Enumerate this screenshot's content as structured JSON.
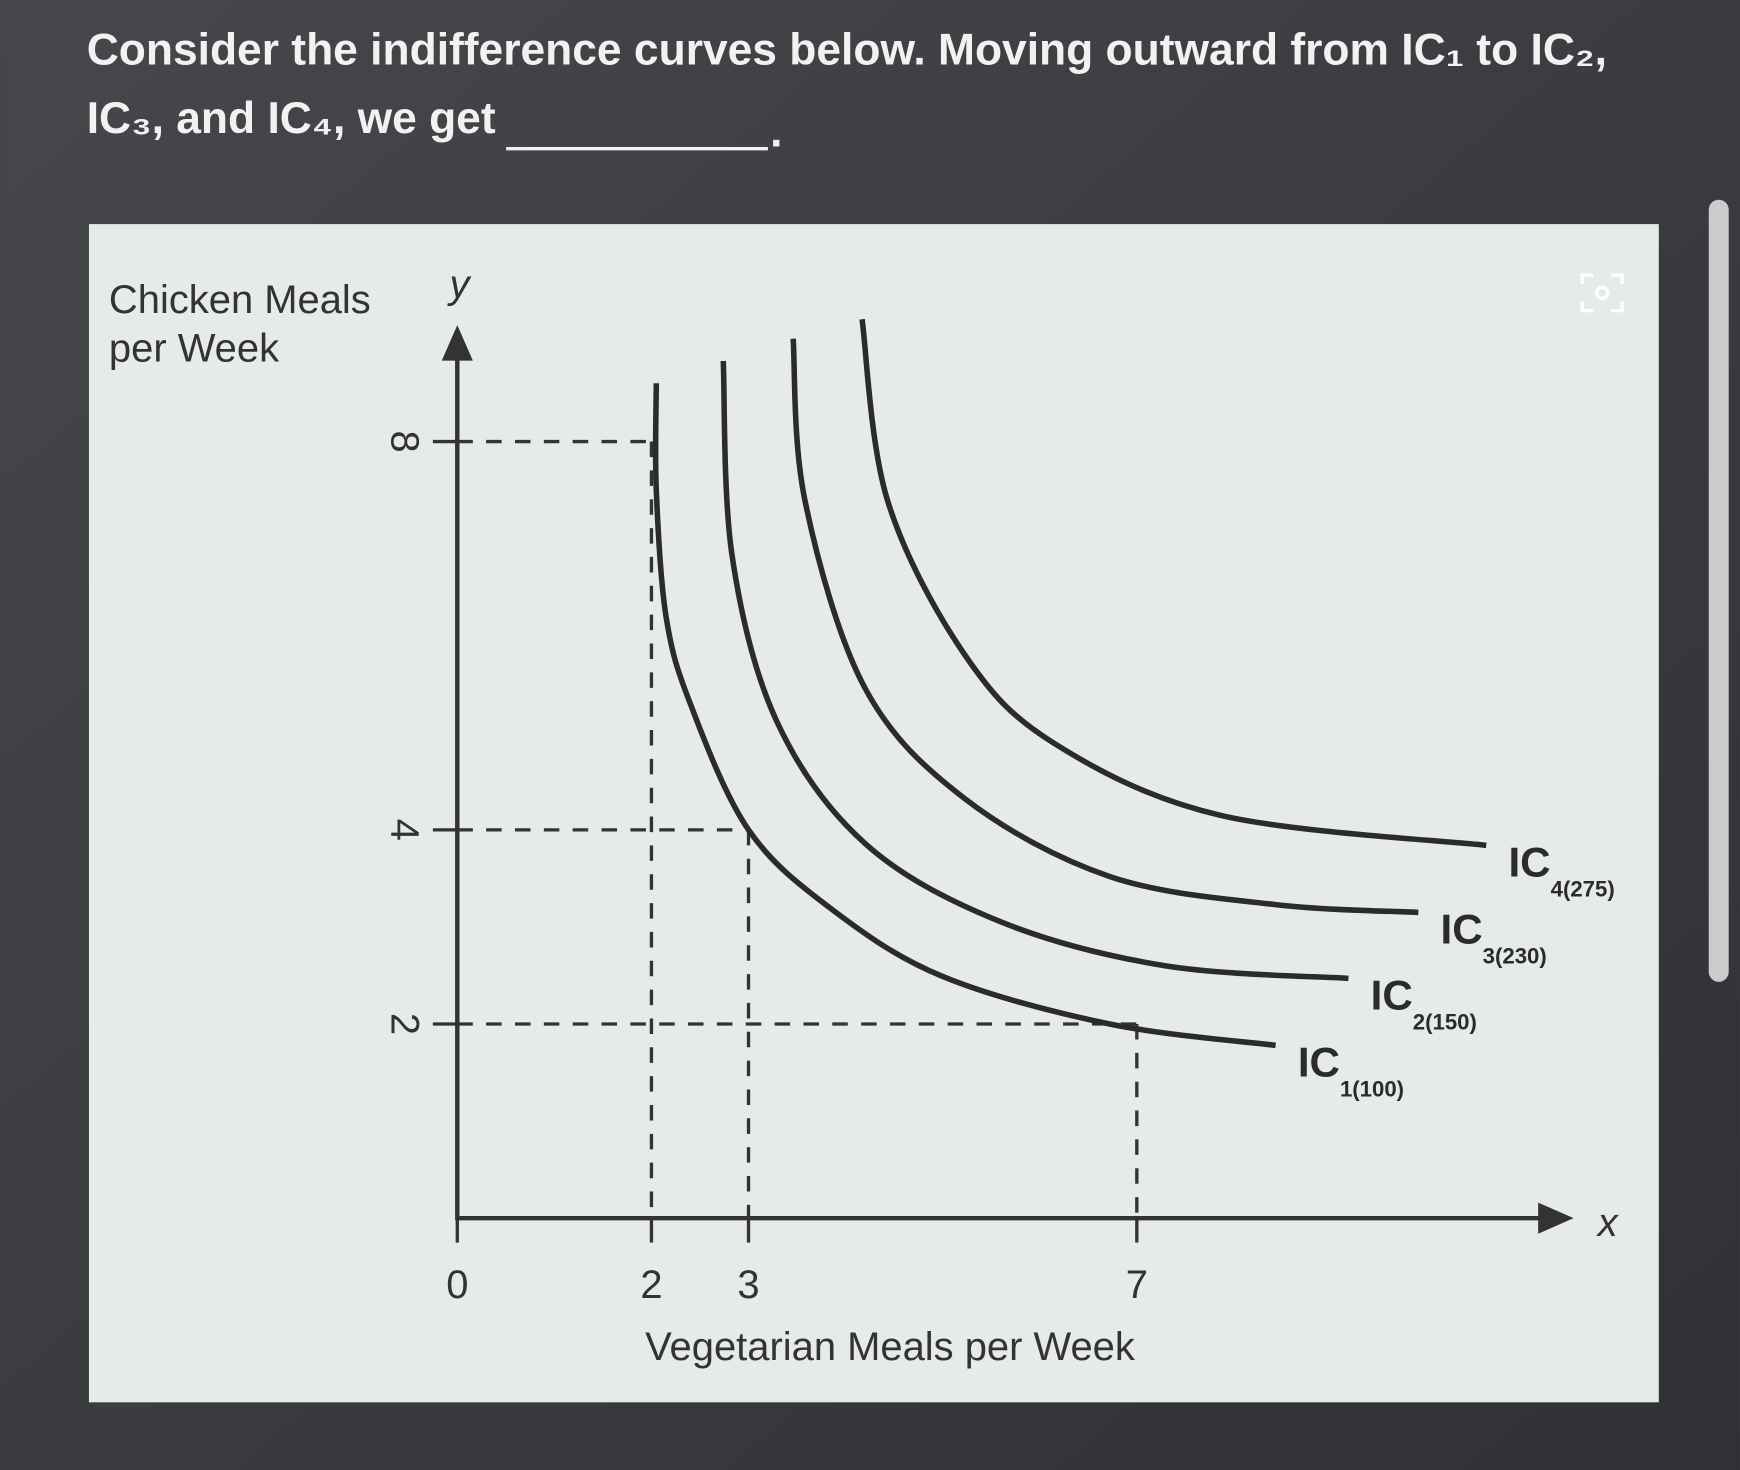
{
  "question_lines": [
    "Consider the indifference curves below. Moving outward from IC₁ to IC₂,",
    "IC₃, and IC₄, we get"
  ],
  "question_end": ".",
  "chart_data": {
    "type": "line",
    "ylabel": [
      "Chicken Meals",
      "per Week"
    ],
    "xlabel": "Vegetarian Meals per Week",
    "x_axis_letter": "x",
    "y_axis_letter": "y",
    "xlim": [
      0,
      11.5
    ],
    "ylim": [
      0,
      9.2
    ],
    "xticks": [
      0,
      2,
      3,
      7
    ],
    "yticks": [
      2,
      4,
      8
    ],
    "guides": [
      {
        "x": 2,
        "y": 8
      },
      {
        "x": 3,
        "y": 4
      },
      {
        "x": 7,
        "y": 2
      }
    ],
    "color": "#2b2b2b",
    "series": [
      {
        "name": "IC",
        "name_subscript": "1(100)",
        "x": [
          2.05,
          2.05,
          2.15,
          2.4,
          3.0,
          3.86,
          5.0,
          6.72,
          8.43
        ],
        "values": [
          8.6,
          7.5,
          6.2,
          5.3,
          4.0,
          3.18,
          2.49,
          2.0,
          1.78
        ]
      },
      {
        "name": "IC",
        "name_subscript": "2(150)",
        "x": [
          2.74,
          2.83,
          3.29,
          4.2,
          5.58,
          7.29,
          9.18
        ],
        "values": [
          8.83,
          6.83,
          5.12,
          3.86,
          3.06,
          2.6,
          2.47
        ]
      },
      {
        "name": "IC",
        "name_subscript": "3(230)",
        "x": [
          3.46,
          3.58,
          4.2,
          5.23,
          6.72,
          8.43,
          9.9
        ],
        "values": [
          9.06,
          7.4,
          5.46,
          4.32,
          3.52,
          3.23,
          3.15
        ]
      },
      {
        "name": "IC",
        "name_subscript": "4(275)",
        "x": [
          4.17,
          4.43,
          5.23,
          6.15,
          7.86,
          10.6
        ],
        "values": [
          9.26,
          7.4,
          5.8,
          4.89,
          4.15,
          3.84
        ]
      }
    ]
  }
}
